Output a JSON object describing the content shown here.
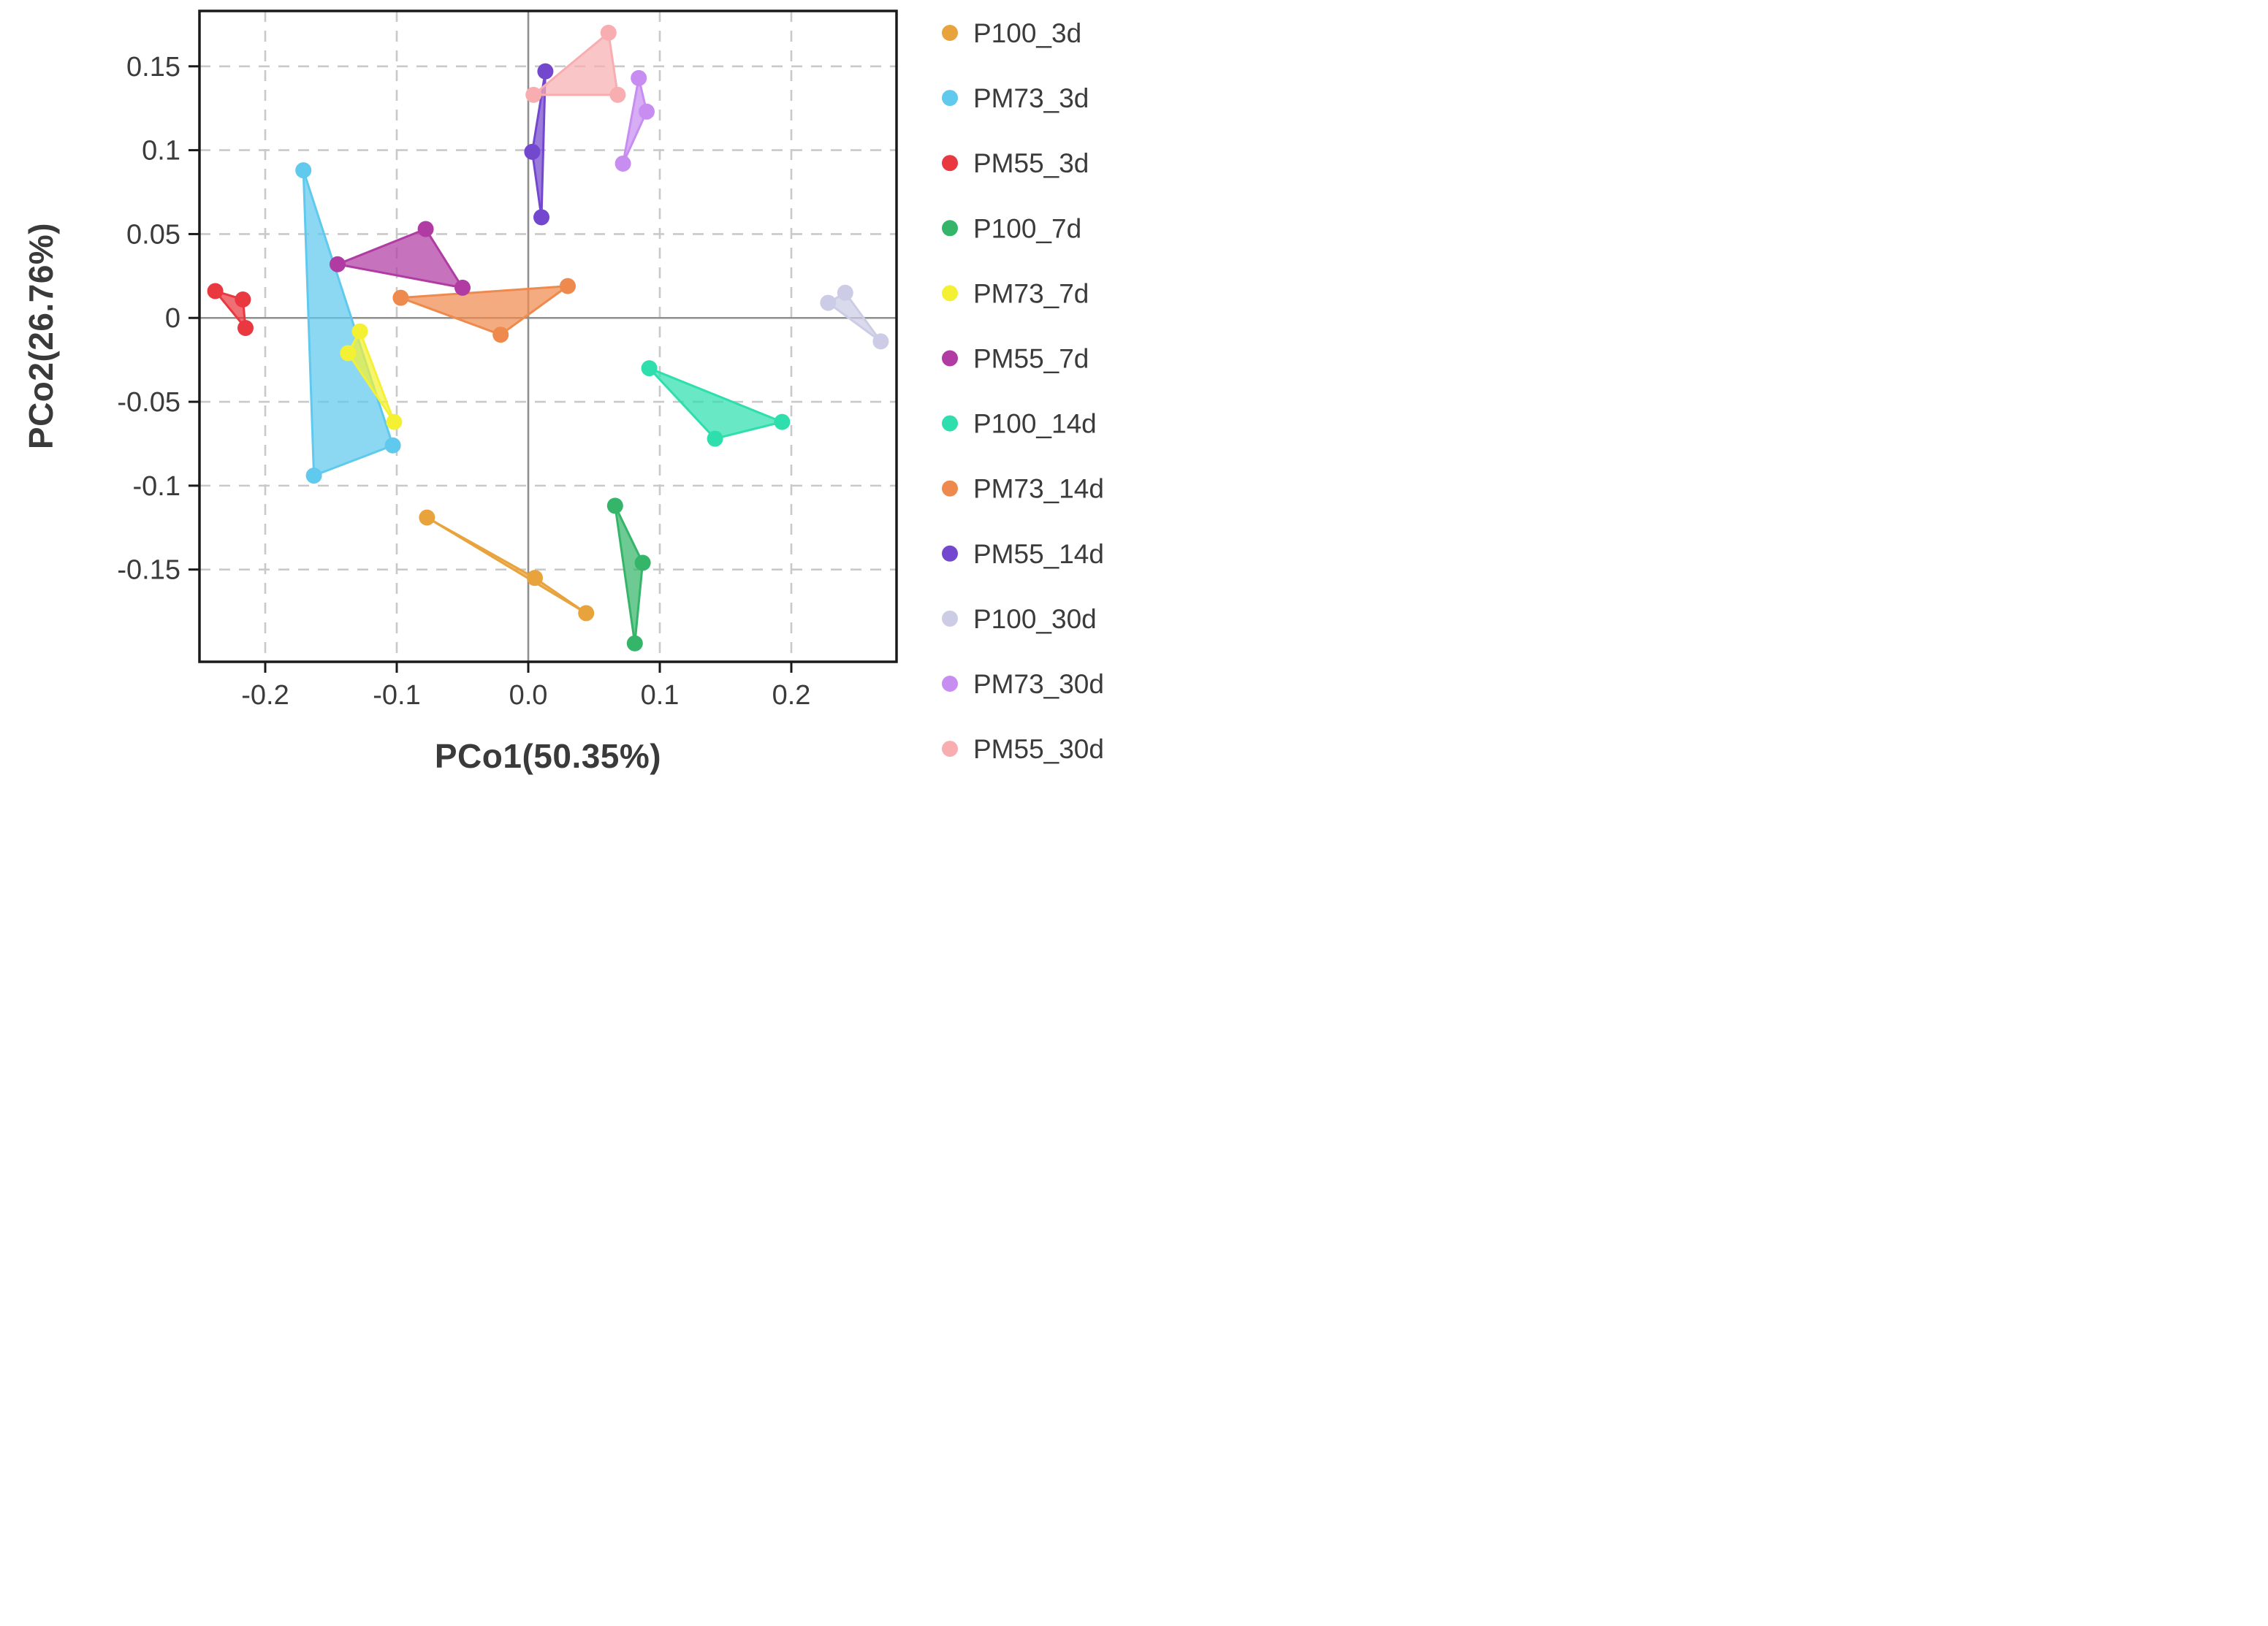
{
  "chart_data": {
    "type": "scatter",
    "title": "",
    "xlabel": "PCo1(50.35%)",
    "ylabel": "PCo2(26.76%)",
    "xlim": [
      -0.25,
      0.28
    ],
    "ylim": [
      -0.205,
      0.183
    ],
    "grid": "dashed gridlines at every tick, solid gray zero lines at x=0 and y=0",
    "legend_position": "right",
    "x_ticks": [
      {
        "v": -0.2,
        "label": "-0.2"
      },
      {
        "v": -0.1,
        "label": "-0.1"
      },
      {
        "v": 0.0,
        "label": "0.0"
      },
      {
        "v": 0.1,
        "label": "0.1"
      },
      {
        "v": 0.2,
        "label": "0.2"
      }
    ],
    "y_ticks": [
      {
        "v": 0.15,
        "label": "0.15"
      },
      {
        "v": 0.1,
        "label": "0.1"
      },
      {
        "v": 0.05,
        "label": "0.05"
      },
      {
        "v": 0.0,
        "label": "0"
      },
      {
        "v": -0.05,
        "label": "-0.05"
      },
      {
        "v": -0.1,
        "label": "-0.1"
      },
      {
        "v": -0.15,
        "label": "-0.15"
      }
    ],
    "series": [
      {
        "name": "P100_3d",
        "color": "#E8A33D",
        "hull": true,
        "points": [
          [
            -0.077,
            -0.119
          ],
          [
            0.005,
            -0.155
          ],
          [
            0.044,
            -0.176
          ]
        ]
      },
      {
        "name": "PM73_3d",
        "color": "#5FC9EE",
        "hull": true,
        "points": [
          [
            -0.171,
            0.088
          ],
          [
            -0.163,
            -0.094
          ],
          [
            -0.103,
            -0.076
          ]
        ]
      },
      {
        "name": "PM55_3d",
        "color": "#E9383F",
        "hull": true,
        "points": [
          [
            -0.238,
            0.016
          ],
          [
            -0.217,
            0.011
          ],
          [
            -0.215,
            -0.006
          ]
        ]
      },
      {
        "name": "P100_7d",
        "color": "#34B569",
        "hull": true,
        "points": [
          [
            0.066,
            -0.112
          ],
          [
            0.087,
            -0.146
          ],
          [
            0.081,
            -0.194
          ]
        ]
      },
      {
        "name": "PM73_7d",
        "color": "#F4F135",
        "hull": true,
        "points": [
          [
            -0.128,
            -0.008
          ],
          [
            -0.137,
            -0.021
          ],
          [
            -0.102,
            -0.062
          ]
        ]
      },
      {
        "name": "PM55_7d",
        "color": "#B03CA3",
        "hull": true,
        "points": [
          [
            -0.145,
            0.032
          ],
          [
            -0.078,
            0.053
          ],
          [
            -0.05,
            0.018
          ]
        ]
      },
      {
        "name": "P100_14d",
        "color": "#2EDFAD",
        "hull": true,
        "points": [
          [
            0.092,
            -0.03
          ],
          [
            0.142,
            -0.072
          ],
          [
            0.193,
            -0.062
          ]
        ]
      },
      {
        "name": "PM73_14d",
        "color": "#EE8A4D",
        "hull": true,
        "points": [
          [
            -0.097,
            0.012
          ],
          [
            0.03,
            0.019
          ],
          [
            -0.021,
            -0.01
          ]
        ]
      },
      {
        "name": "PM55_14d",
        "color": "#7348CF",
        "hull": true,
        "points": [
          [
            0.013,
            0.147
          ],
          [
            0.003,
            0.099
          ],
          [
            0.01,
            0.06
          ]
        ]
      },
      {
        "name": "P100_30d",
        "color": "#CCCCE6",
        "hull": true,
        "points": [
          [
            0.228,
            0.009
          ],
          [
            0.241,
            0.015
          ],
          [
            0.268,
            -0.014
          ]
        ]
      },
      {
        "name": "PM73_30d",
        "color": "#C88DF1",
        "hull": true,
        "points": [
          [
            0.084,
            0.143
          ],
          [
            0.09,
            0.123
          ],
          [
            0.072,
            0.092
          ]
        ]
      },
      {
        "name": "PM55_30d",
        "color": "#F8AEB1",
        "hull": true,
        "points": [
          [
            0.061,
            0.17
          ],
          [
            0.004,
            0.133
          ],
          [
            0.068,
            0.133
          ]
        ]
      }
    ]
  }
}
